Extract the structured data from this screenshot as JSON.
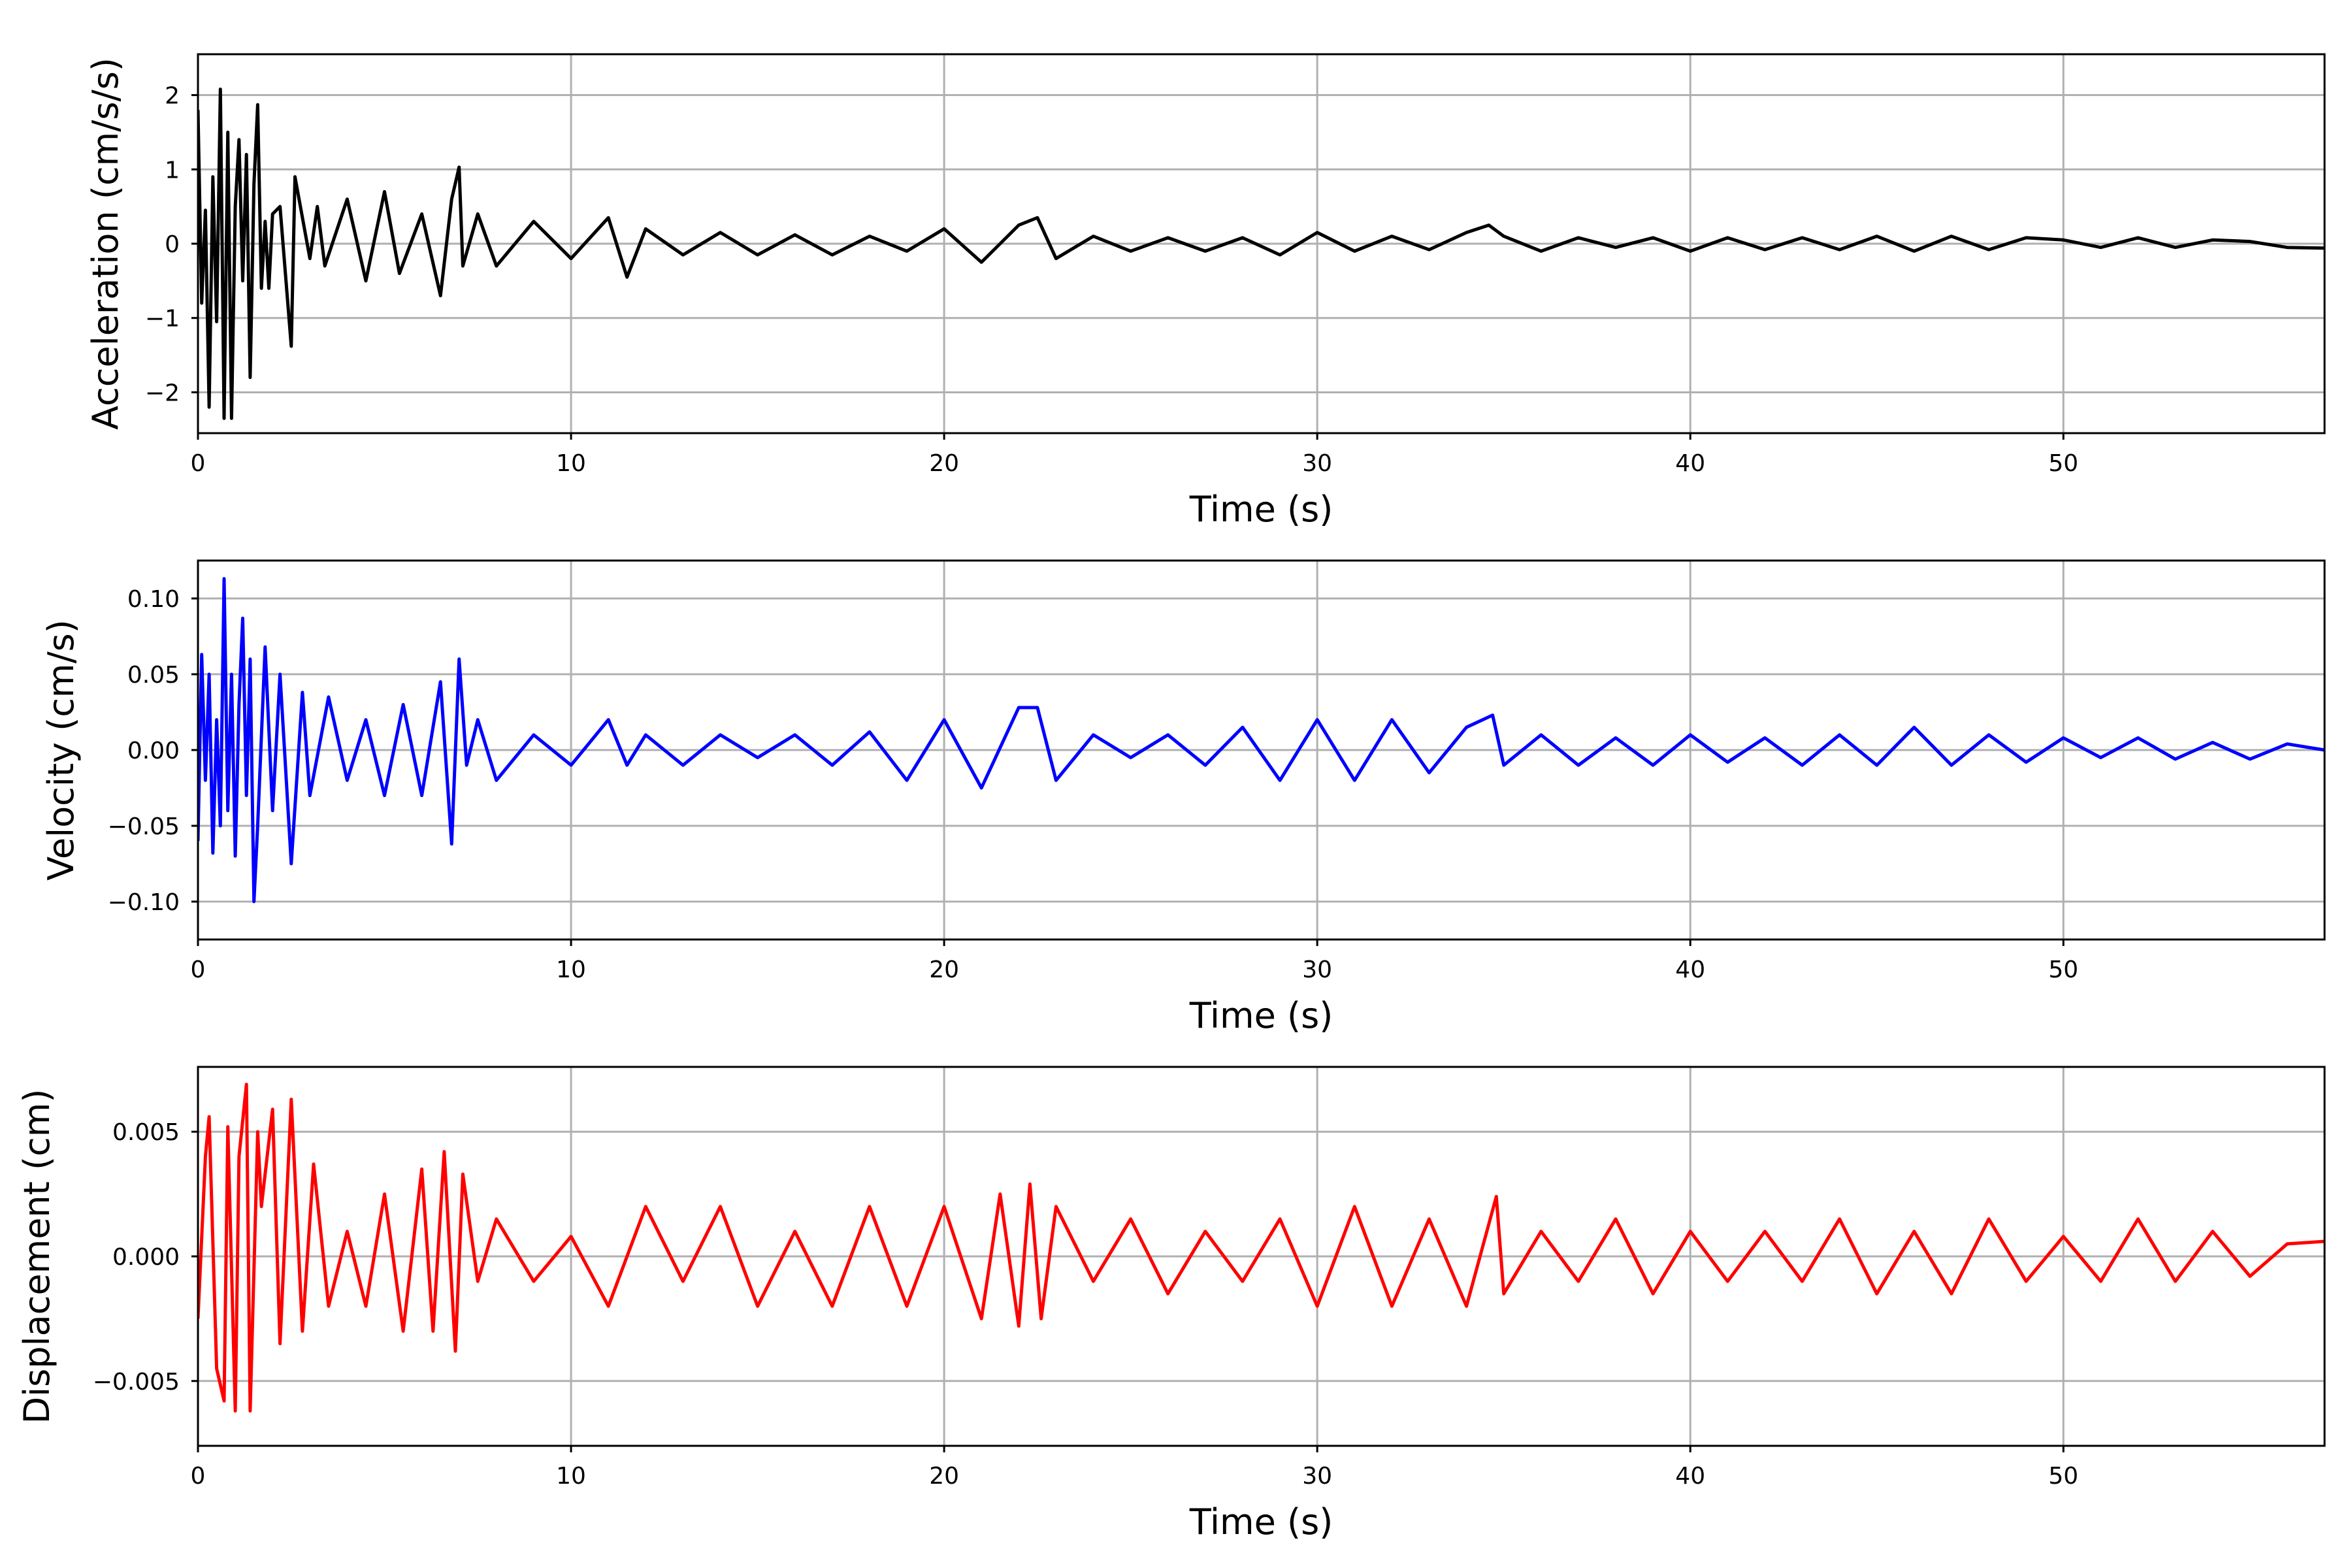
{
  "chart_data": [
    {
      "type": "line",
      "xlabel": "Time (s)",
      "ylabel": "Acceleration (cm/s/s)",
      "xlim": [
        0,
        57
      ],
      "ylim": [
        -2.55,
        2.55
      ],
      "xticks": [
        0,
        10,
        20,
        30,
        40,
        50
      ],
      "xtick_labels": [
        "0",
        "10",
        "20",
        "30",
        "40",
        "50"
      ],
      "yticks": [
        -2,
        -1,
        0,
        1,
        2
      ],
      "ytick_labels": [
        "−2",
        "−1",
        "0",
        "1",
        "2"
      ],
      "grid": true,
      "color": "#000000",
      "series": [
        {
          "x": [
            0,
            0.1,
            0.2,
            0.3,
            0.4,
            0.5,
            0.6,
            0.7,
            0.8,
            0.9,
            1.0,
            1.1,
            1.2,
            1.3,
            1.4,
            1.5,
            1.6,
            1.7,
            1.8,
            1.9,
            2.0,
            2.2,
            2.5,
            2.6,
            3.0,
            3.2,
            3.4,
            4.0,
            4.5,
            5.0,
            5.4,
            6.0,
            6.5,
            6.8,
            7.0,
            7.1,
            7.5,
            8.0,
            9.0,
            10.0,
            11.0,
            11.5,
            12.0,
            13.0,
            14.0,
            15.0,
            16.0,
            17.0,
            18.0,
            19.0,
            20.0,
            21.0,
            22.0,
            22.5,
            23.0,
            24.0,
            25.0,
            26.0,
            27.0,
            28.0,
            29.0,
            30.0,
            31.0,
            32.0,
            33.0,
            34.0,
            34.6,
            35.0,
            36.0,
            37.0,
            38.0,
            39.0,
            40.0,
            41.0,
            42.0,
            43.0,
            44.0,
            45.0,
            46.0,
            47.0,
            48.0,
            49.0,
            50.0,
            51.0,
            52.0,
            53.0,
            54.0,
            55.0,
            56.0,
            57.0
          ],
          "y": [
            1.8,
            -0.8,
            0.45,
            -2.2,
            0.9,
            -1.05,
            2.08,
            -2.35,
            1.5,
            -2.35,
            0.5,
            1.4,
            -0.5,
            1.2,
            -1.8,
            0.8,
            1.87,
            -0.6,
            0.3,
            -0.6,
            0.4,
            0.5,
            -1.38,
            0.9,
            -0.2,
            0.5,
            -0.3,
            0.6,
            -0.5,
            0.7,
            -0.4,
            0.4,
            -0.7,
            0.6,
            1.03,
            -0.3,
            0.4,
            -0.3,
            0.3,
            -0.2,
            0.35,
            -0.45,
            0.2,
            -0.15,
            0.15,
            -0.15,
            0.12,
            -0.15,
            0.1,
            -0.1,
            0.2,
            -0.25,
            0.25,
            0.35,
            -0.2,
            0.1,
            -0.1,
            0.08,
            -0.1,
            0.08,
            -0.15,
            0.15,
            -0.1,
            0.1,
            -0.08,
            0.15,
            0.25,
            0.1,
            -0.1,
            0.08,
            -0.05,
            0.08,
            -0.1,
            0.08,
            -0.08,
            0.08,
            -0.08,
            0.1,
            -0.1,
            0.1,
            -0.08,
            0.08,
            0.05,
            -0.05,
            0.08,
            -0.05,
            0.05,
            0.03,
            -0.05,
            -0.06
          ]
        }
      ]
    },
    {
      "type": "line",
      "xlabel": "Time (s)",
      "ylabel": "Velocity (cm/s)",
      "xlim": [
        0,
        57
      ],
      "ylim": [
        -0.125,
        0.125
      ],
      "xticks": [
        0,
        10,
        20,
        30,
        40,
        50
      ],
      "xtick_labels": [
        "0",
        "10",
        "20",
        "30",
        "40",
        "50"
      ],
      "yticks": [
        -0.1,
        -0.05,
        0.0,
        0.05,
        0.1
      ],
      "ytick_labels": [
        "−0.10",
        "−0.05",
        "0.00",
        "0.05",
        "0.10"
      ],
      "grid": true,
      "color": "#0000ff",
      "series": [
        {
          "x": [
            0,
            0.1,
            0.2,
            0.3,
            0.4,
            0.5,
            0.6,
            0.7,
            0.8,
            0.9,
            1.0,
            1.1,
            1.2,
            1.3,
            1.4,
            1.5,
            1.6,
            1.8,
            2.0,
            2.2,
            2.5,
            2.8,
            3.0,
            3.5,
            4.0,
            4.5,
            5.0,
            5.5,
            6.0,
            6.5,
            6.8,
            7.0,
            7.2,
            7.5,
            8.0,
            9.0,
            10.0,
            11.0,
            11.5,
            12.0,
            13.0,
            14.0,
            15.0,
            16.0,
            17.0,
            18.0,
            19.0,
            20.0,
            21.0,
            22.0,
            22.5,
            23.0,
            24.0,
            25.0,
            26.0,
            27.0,
            28.0,
            29.0,
            30.0,
            31.0,
            32.0,
            33.0,
            34.0,
            34.7,
            35.0,
            36.0,
            37.0,
            38.0,
            39.0,
            40.0,
            41.0,
            42.0,
            43.0,
            44.0,
            45.0,
            46.0,
            47.0,
            48.0,
            49.0,
            50.0,
            51.0,
            52.0,
            53.0,
            54.0,
            55.0,
            56.0,
            57.0
          ],
          "y": [
            -0.06,
            0.063,
            -0.02,
            0.05,
            -0.068,
            0.02,
            -0.05,
            0.113,
            -0.04,
            0.05,
            -0.07,
            0.03,
            0.087,
            -0.03,
            0.06,
            -0.1,
            -0.05,
            0.068,
            -0.04,
            0.05,
            -0.075,
            0.038,
            -0.03,
            0.035,
            -0.02,
            0.02,
            -0.03,
            0.03,
            -0.03,
            0.045,
            -0.062,
            0.06,
            -0.01,
            0.02,
            -0.02,
            0.01,
            -0.01,
            0.02,
            -0.01,
            0.01,
            -0.01,
            0.01,
            -0.005,
            0.01,
            -0.01,
            0.012,
            -0.02,
            0.02,
            -0.025,
            0.028,
            0.028,
            -0.02,
            0.01,
            -0.005,
            0.01,
            -0.01,
            0.015,
            -0.02,
            0.02,
            -0.02,
            0.02,
            -0.015,
            0.015,
            0.023,
            -0.01,
            0.01,
            -0.01,
            0.008,
            -0.01,
            0.01,
            -0.008,
            0.008,
            -0.01,
            0.01,
            -0.01,
            0.015,
            -0.01,
            0.01,
            -0.008,
            0.008,
            -0.005,
            0.008,
            -0.006,
            0.005,
            -0.006,
            0.004,
            0.0
          ]
        }
      ]
    },
    {
      "type": "line",
      "xlabel": "Time (s)",
      "ylabel": "Displacement (cm)",
      "xlim": [
        0,
        57
      ],
      "ylim": [
        -0.0076,
        0.0076
      ],
      "xticks": [
        0,
        10,
        20,
        30,
        40,
        50
      ],
      "xtick_labels": [
        "0",
        "10",
        "20",
        "30",
        "40",
        "50"
      ],
      "yticks": [
        -0.005,
        0.0,
        0.005
      ],
      "ytick_labels": [
        "−0.005",
        "0.000",
        "0.005"
      ],
      "grid": true,
      "color": "#ff0000",
      "series": [
        {
          "x": [
            0,
            0.2,
            0.3,
            0.5,
            0.7,
            0.8,
            1.0,
            1.1,
            1.3,
            1.4,
            1.6,
            1.7,
            2.0,
            2.2,
            2.5,
            2.8,
            3.1,
            3.5,
            4.0,
            4.5,
            5.0,
            5.5,
            6.0,
            6.3,
            6.6,
            6.9,
            7.1,
            7.5,
            8.0,
            9.0,
            10.0,
            11.0,
            12.0,
            13.0,
            14.0,
            15.0,
            16.0,
            17.0,
            18.0,
            19.0,
            20.0,
            21.0,
            21.5,
            22.0,
            22.3,
            22.6,
            23.0,
            24.0,
            25.0,
            26.0,
            27.0,
            28.0,
            29.0,
            30.0,
            31.0,
            32.0,
            33.0,
            34.0,
            34.8,
            35.0,
            36.0,
            37.0,
            38.0,
            39.0,
            40.0,
            41.0,
            42.0,
            43.0,
            44.0,
            45.0,
            46.0,
            47.0,
            48.0,
            49.0,
            50.0,
            51.0,
            52.0,
            53.0,
            54.0,
            55.0,
            56.0,
            57.0
          ],
          "y": [
            -0.0025,
            0.004,
            0.0056,
            -0.0045,
            -0.0058,
            0.0052,
            -0.0062,
            0.004,
            0.0069,
            -0.0062,
            0.005,
            0.002,
            0.0059,
            -0.0035,
            0.0063,
            -0.003,
            0.0037,
            -0.002,
            0.001,
            -0.002,
            0.0025,
            -0.003,
            0.0035,
            -0.003,
            0.0042,
            -0.0038,
            0.0033,
            -0.001,
            0.0015,
            -0.001,
            0.0008,
            -0.002,
            0.002,
            -0.001,
            0.002,
            -0.002,
            0.001,
            -0.002,
            0.002,
            -0.002,
            0.002,
            -0.0025,
            0.0025,
            -0.0028,
            0.0029,
            -0.0025,
            0.002,
            -0.001,
            0.0015,
            -0.0015,
            0.001,
            -0.001,
            0.0015,
            -0.002,
            0.002,
            -0.002,
            0.0015,
            -0.002,
            0.0024,
            -0.0015,
            0.001,
            -0.001,
            0.0015,
            -0.0015,
            0.001,
            -0.001,
            0.001,
            -0.001,
            0.0015,
            -0.0015,
            0.001,
            -0.0015,
            0.0015,
            -0.001,
            0.0008,
            -0.001,
            0.0015,
            -0.001,
            0.001,
            -0.0008,
            0.0005,
            0.0006
          ]
        }
      ]
    }
  ]
}
